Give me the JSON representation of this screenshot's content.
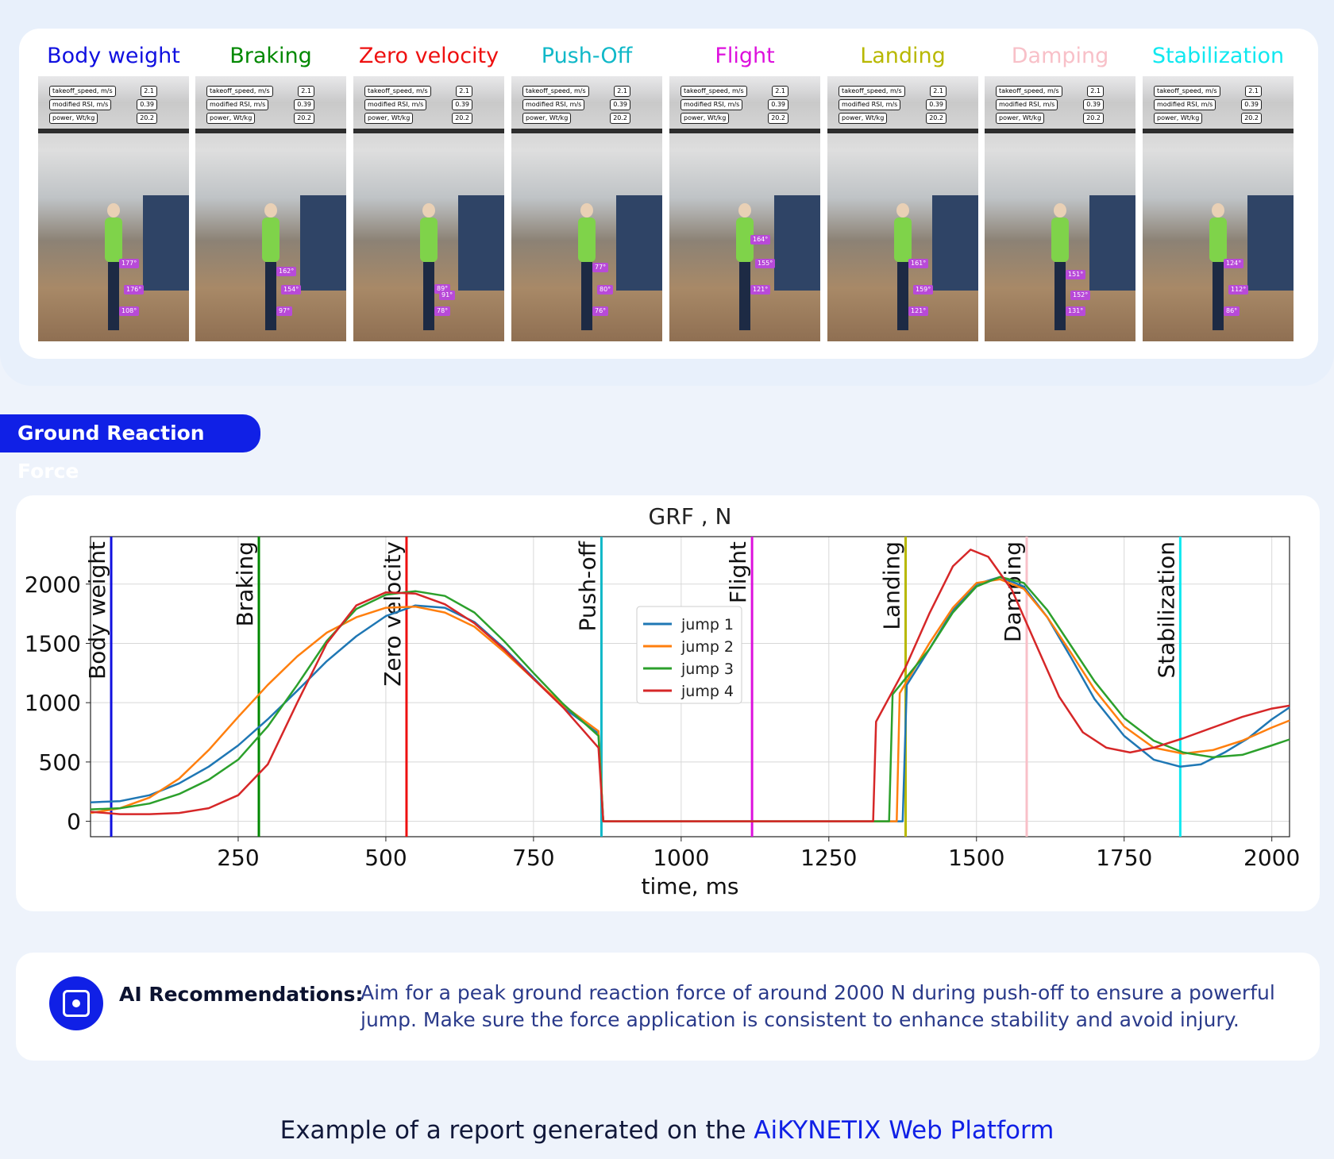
{
  "phases": [
    {
      "title": "Body weight",
      "color": "#1010e0",
      "angles": [
        "177°",
        "176°",
        "108°"
      ]
    },
    {
      "title": "Braking",
      "color": "#008800",
      "angles": [
        "162°",
        "154°",
        "97°"
      ]
    },
    {
      "title": "Zero velocity",
      "color": "#ee1010",
      "angles": [
        "89°",
        "91°",
        "78°"
      ]
    },
    {
      "title": "Push-Off",
      "color": "#10b8c8",
      "angles": [
        "77°",
        "80°",
        "76°"
      ]
    },
    {
      "title": "Flight",
      "color": "#dd10dd",
      "angles": [
        "164°",
        "155°",
        "121°"
      ]
    },
    {
      "title": "Landing",
      "color": "#b8b800",
      "angles": [
        "161°",
        "159°",
        "121°"
      ]
    },
    {
      "title": "Damping",
      "color": "#f8c0c8",
      "angles": [
        "151°",
        "152°",
        "131°"
      ]
    },
    {
      "title": "Stabilization",
      "color": "#10e8f0",
      "angles": [
        "124°",
        "112°",
        "86°"
      ]
    }
  ],
  "metrics": [
    {
      "label": "takeoff_speed, m/s",
      "value": "2.1"
    },
    {
      "label": "modified RSI, m/s",
      "value": "0.39"
    },
    {
      "label": "power, Wt/kg",
      "value": "20.2"
    }
  ],
  "grf_tab": "Ground Reaction Force",
  "chart_data": {
    "type": "line",
    "title": "GRF , N",
    "xlabel": "time, ms",
    "ylabel": "",
    "xlim": [
      0,
      2030
    ],
    "ylim": [
      -130,
      2400
    ],
    "xticks": [
      250,
      500,
      750,
      1000,
      1250,
      1500,
      1750,
      2000
    ],
    "yticks": [
      0,
      500,
      1000,
      1500,
      2000
    ],
    "grid": true,
    "legend_position": "center",
    "events": [
      {
        "name": "Body weight",
        "x": 35,
        "color": "#1010e0"
      },
      {
        "name": "Braking",
        "x": 285,
        "color": "#008800"
      },
      {
        "name": "Zero velocity",
        "x": 535,
        "color": "#ee1010"
      },
      {
        "name": "Push-off",
        "x": 865,
        "color": "#10b8c8"
      },
      {
        "name": "Flight",
        "x": 1120,
        "color": "#dd10dd"
      },
      {
        "name": "Landing",
        "x": 1380,
        "color": "#b8b800"
      },
      {
        "name": "Damping",
        "x": 1585,
        "color": "#f8c0c8"
      },
      {
        "name": "Stabilization",
        "x": 1845,
        "color": "#10e8f0"
      }
    ],
    "series": [
      {
        "name": "jump 1",
        "color": "#1f77b4",
        "points": [
          [
            0,
            160
          ],
          [
            50,
            170
          ],
          [
            100,
            220
          ],
          [
            150,
            320
          ],
          [
            200,
            460
          ],
          [
            250,
            640
          ],
          [
            300,
            860
          ],
          [
            350,
            1100
          ],
          [
            400,
            1350
          ],
          [
            450,
            1560
          ],
          [
            500,
            1730
          ],
          [
            550,
            1820
          ],
          [
            600,
            1800
          ],
          [
            650,
            1680
          ],
          [
            700,
            1460
          ],
          [
            750,
            1210
          ],
          [
            800,
            960
          ],
          [
            860,
            740
          ],
          [
            868,
            0
          ],
          [
            1375,
            0
          ],
          [
            1382,
            1150
          ],
          [
            1420,
            1450
          ],
          [
            1460,
            1780
          ],
          [
            1500,
            2000
          ],
          [
            1540,
            2060
          ],
          [
            1580,
            1980
          ],
          [
            1620,
            1720
          ],
          [
            1660,
            1380
          ],
          [
            1700,
            1030
          ],
          [
            1750,
            720
          ],
          [
            1800,
            520
          ],
          [
            1845,
            460
          ],
          [
            1880,
            480
          ],
          [
            1920,
            580
          ],
          [
            1960,
            700
          ],
          [
            2000,
            860
          ],
          [
            2030,
            960
          ]
        ]
      },
      {
        "name": "jump 2",
        "color": "#ff7f0e",
        "points": [
          [
            0,
            70
          ],
          [
            50,
            110
          ],
          [
            100,
            200
          ],
          [
            150,
            360
          ],
          [
            200,
            600
          ],
          [
            250,
            880
          ],
          [
            300,
            1150
          ],
          [
            350,
            1390
          ],
          [
            400,
            1590
          ],
          [
            450,
            1720
          ],
          [
            500,
            1800
          ],
          [
            550,
            1810
          ],
          [
            600,
            1760
          ],
          [
            650,
            1640
          ],
          [
            700,
            1430
          ],
          [
            750,
            1200
          ],
          [
            800,
            980
          ],
          [
            860,
            760
          ],
          [
            868,
            0
          ],
          [
            1365,
            0
          ],
          [
            1370,
            1080
          ],
          [
            1420,
            1500
          ],
          [
            1460,
            1800
          ],
          [
            1500,
            2010
          ],
          [
            1540,
            2040
          ],
          [
            1580,
            1960
          ],
          [
            1620,
            1720
          ],
          [
            1660,
            1420
          ],
          [
            1700,
            1110
          ],
          [
            1750,
            800
          ],
          [
            1800,
            620
          ],
          [
            1850,
            570
          ],
          [
            1900,
            600
          ],
          [
            1950,
            680
          ],
          [
            2000,
            790
          ],
          [
            2030,
            850
          ]
        ]
      },
      {
        "name": "jump 3",
        "color": "#2ca02c",
        "points": [
          [
            0,
            100
          ],
          [
            50,
            110
          ],
          [
            100,
            150
          ],
          [
            150,
            230
          ],
          [
            200,
            350
          ],
          [
            250,
            520
          ],
          [
            300,
            800
          ],
          [
            350,
            1150
          ],
          [
            400,
            1520
          ],
          [
            450,
            1790
          ],
          [
            500,
            1910
          ],
          [
            550,
            1940
          ],
          [
            600,
            1900
          ],
          [
            650,
            1760
          ],
          [
            700,
            1520
          ],
          [
            750,
            1250
          ],
          [
            800,
            990
          ],
          [
            860,
            720
          ],
          [
            868,
            0
          ],
          [
            1352,
            0
          ],
          [
            1358,
            1070
          ],
          [
            1420,
            1450
          ],
          [
            1460,
            1760
          ],
          [
            1500,
            1980
          ],
          [
            1540,
            2060
          ],
          [
            1580,
            2010
          ],
          [
            1620,
            1780
          ],
          [
            1660,
            1480
          ],
          [
            1700,
            1180
          ],
          [
            1750,
            870
          ],
          [
            1800,
            680
          ],
          [
            1850,
            580
          ],
          [
            1900,
            540
          ],
          [
            1950,
            560
          ],
          [
            2000,
            640
          ],
          [
            2030,
            690
          ]
        ]
      },
      {
        "name": "jump 4",
        "color": "#d62728",
        "points": [
          [
            0,
            80
          ],
          [
            50,
            60
          ],
          [
            100,
            60
          ],
          [
            150,
            70
          ],
          [
            200,
            110
          ],
          [
            250,
            220
          ],
          [
            300,
            480
          ],
          [
            350,
            1000
          ],
          [
            400,
            1500
          ],
          [
            450,
            1820
          ],
          [
            500,
            1930
          ],
          [
            550,
            1920
          ],
          [
            600,
            1830
          ],
          [
            650,
            1670
          ],
          [
            700,
            1450
          ],
          [
            750,
            1200
          ],
          [
            800,
            960
          ],
          [
            860,
            620
          ],
          [
            868,
            0
          ],
          [
            1325,
            0
          ],
          [
            1330,
            840
          ],
          [
            1380,
            1300
          ],
          [
            1420,
            1750
          ],
          [
            1460,
            2150
          ],
          [
            1490,
            2290
          ],
          [
            1520,
            2230
          ],
          [
            1560,
            1950
          ],
          [
            1600,
            1500
          ],
          [
            1640,
            1050
          ],
          [
            1680,
            750
          ],
          [
            1720,
            620
          ],
          [
            1760,
            580
          ],
          [
            1800,
            620
          ],
          [
            1850,
            700
          ],
          [
            1900,
            790
          ],
          [
            1950,
            880
          ],
          [
            2000,
            950
          ],
          [
            2030,
            975
          ]
        ]
      }
    ]
  },
  "ai": {
    "label": "AI Recommendations:",
    "text": "Aim for a peak ground reaction force of around 2000 N during push-off to ensure a powerful jump. Make sure the force application is consistent to enhance stability and avoid injury."
  },
  "footer": {
    "prefix": "Example of a report generated on the ",
    "brand": "AiKYNETIX Web Platform"
  }
}
